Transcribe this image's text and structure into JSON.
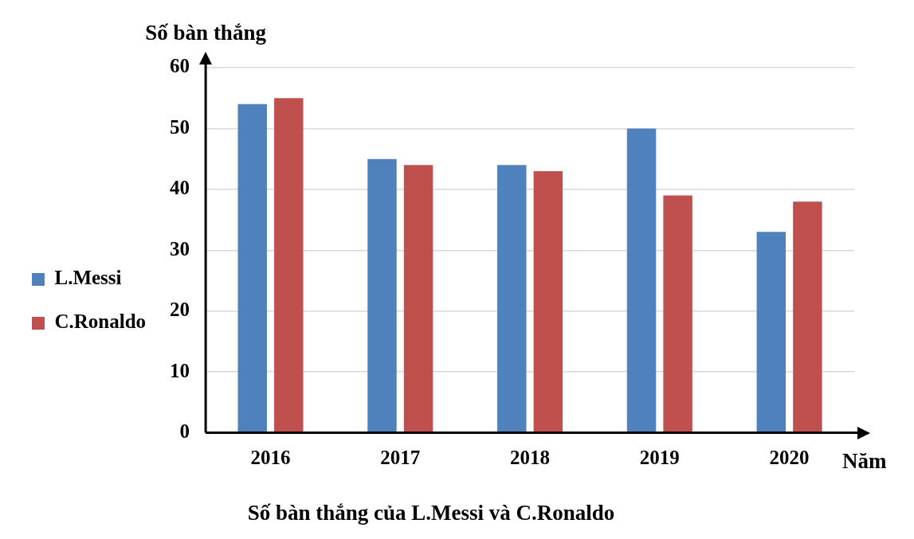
{
  "chart_data": {
    "type": "bar",
    "title": "Số bàn thắng của L.Messi và C.Ronaldo",
    "ylabel": "Số bàn thắng",
    "xlabel": "Năm",
    "categories": [
      "2016",
      "2017",
      "2018",
      "2019",
      "2020"
    ],
    "series": [
      {
        "name": "L.Messi",
        "color": "#4f81bd",
        "values": [
          54,
          45,
          44,
          50,
          33
        ]
      },
      {
        "name": "C.Ronaldo",
        "color": "#c0504d",
        "values": [
          55,
          44,
          43,
          39,
          38
        ]
      }
    ],
    "ylim": [
      0,
      60
    ],
    "yticks": [
      0,
      10,
      20,
      30,
      40,
      50,
      60
    ],
    "grid": "y",
    "legend": "left"
  }
}
